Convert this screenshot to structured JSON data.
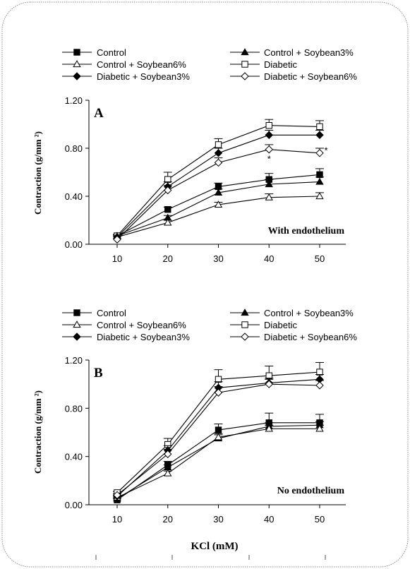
{
  "chart_data": [
    {
      "type": "line",
      "panel_label": "A",
      "annotation": "With endothelium",
      "ylabel": "Contraction (g/mm ²)",
      "xlabel": "",
      "x": [
        10,
        20,
        30,
        40,
        50
      ],
      "x_tick_labels": [
        "10",
        "20",
        "30",
        "40",
        "50"
      ],
      "ylim": [
        0,
        1.2
      ],
      "y_ticks": [
        0,
        0.4,
        0.8,
        1.2
      ],
      "y_tick_labels": [
        "0.00",
        "0.40",
        "0.80",
        "1.20"
      ],
      "legend_position": "top",
      "series": [
        {
          "name": "Control",
          "marker": "square-filled",
          "values": [
            0.07,
            0.29,
            0.48,
            0.54,
            0.58
          ],
          "err": [
            0.01,
            0.02,
            0.03,
            0.05,
            0.05
          ]
        },
        {
          "name": "Control + Soybean3%",
          "marker": "triangle-filled",
          "values": [
            0.07,
            0.22,
            0.43,
            0.5,
            0.52
          ],
          "err": [
            0.01,
            0.02,
            0.03,
            0.04,
            0.04
          ]
        },
        {
          "name": "Control + Soybean6%",
          "marker": "triangle-open",
          "values": [
            0.06,
            0.18,
            0.33,
            0.39,
            0.4
          ],
          "err": [
            0.01,
            0.02,
            0.02,
            0.03,
            0.03
          ]
        },
        {
          "name": "Diabetic",
          "marker": "square-open",
          "values": [
            0.07,
            0.54,
            0.83,
            0.99,
            0.98
          ],
          "err": [
            0.01,
            0.06,
            0.05,
            0.05,
            0.05
          ]
        },
        {
          "name": "Diabetic + Soybean3%",
          "marker": "diamond-filled",
          "values": [
            0.06,
            0.48,
            0.76,
            0.91,
            0.91
          ],
          "err": [
            0.01,
            0.04,
            0.04,
            0.04,
            0.04
          ]
        },
        {
          "name": "Diabetic + Soybean6%",
          "marker": "diamond-open",
          "values": [
            0.04,
            0.45,
            0.68,
            0.79,
            0.76
          ],
          "err": [
            0.01,
            0.04,
            0.04,
            0.04,
            0.04
          ]
        }
      ],
      "significance_markers": [
        {
          "x": 40,
          "y": 0.72,
          "text": "*"
        },
        {
          "x": 50,
          "y": 0.79,
          "text": "*"
        }
      ]
    },
    {
      "type": "line",
      "panel_label": "B",
      "annotation": "No endothelium",
      "ylabel": "Contraction (g/mm ²)",
      "xlabel": "KCl (mM)",
      "x": [
        10,
        20,
        30,
        40,
        50
      ],
      "x_tick_labels": [
        "10",
        "20",
        "30",
        "40",
        "50"
      ],
      "ylim": [
        0,
        1.2
      ],
      "y_ticks": [
        0,
        0.4,
        0.8,
        1.2
      ],
      "y_tick_labels": [
        "0.00",
        "0.40",
        "0.80",
        "1.20"
      ],
      "legend_position": "top",
      "series": [
        {
          "name": "Control",
          "marker": "square-filled",
          "values": [
            0.04,
            0.33,
            0.62,
            0.68,
            0.68
          ],
          "err": [
            0.01,
            0.03,
            0.05,
            0.08,
            0.07
          ]
        },
        {
          "name": "Control + Soybean3%",
          "marker": "triangle-filled",
          "values": [
            0.05,
            0.31,
            0.55,
            0.65,
            0.66
          ],
          "err": [
            0.01,
            0.02,
            0.03,
            0.03,
            0.03
          ]
        },
        {
          "name": "Control + Soybean6%",
          "marker": "triangle-open",
          "values": [
            0.06,
            0.26,
            0.56,
            0.63,
            0.63
          ],
          "err": [
            0.01,
            0.02,
            0.03,
            0.03,
            0.03
          ]
        },
        {
          "name": "Diabetic",
          "marker": "square-open",
          "values": [
            0.1,
            0.5,
            1.04,
            1.07,
            1.1
          ],
          "err": [
            0.01,
            0.05,
            0.08,
            0.08,
            0.08
          ]
        },
        {
          "name": "Diabetic + Soybean3%",
          "marker": "diamond-filled",
          "values": [
            0.07,
            0.45,
            0.97,
            1.01,
            1.04
          ],
          "err": [
            0.01,
            0.04,
            0.05,
            0.04,
            0.04
          ]
        },
        {
          "name": "Diabetic + Soybean6%",
          "marker": "diamond-open",
          "values": [
            0.08,
            0.42,
            0.93,
            1.0,
            0.99
          ],
          "err": [
            0.01,
            0.04,
            0.05,
            0.04,
            0.04
          ]
        }
      ],
      "significance_markers": []
    }
  ]
}
